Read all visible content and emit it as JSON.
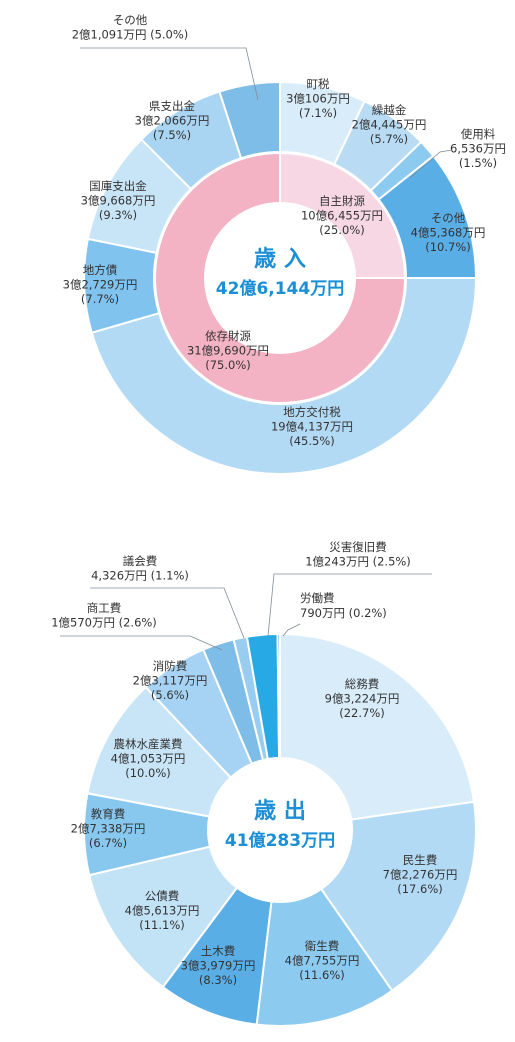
{
  "chart_data": [
    {
      "type": "pie",
      "title": "歳 入",
      "total_label": "42億6,144万円",
      "inner_ring": [
        {
          "name": "自主財源",
          "amount": "10億6,455万円",
          "pct_label": "(25.0%)",
          "pct": 25.0,
          "color": "#f7d7e4"
        },
        {
          "name": "依存財源",
          "amount": "31億9,690万円",
          "pct_label": "(75.0%)",
          "pct": 75.0,
          "color": "#f3b3c5"
        }
      ],
      "outer_ring": [
        {
          "name": "町税",
          "amount": "3億106万円",
          "pct_label": "(7.1%)",
          "pct": 7.1,
          "color": "#d9ecf9"
        },
        {
          "name": "繰越金",
          "amount": "2億4,445万円",
          "pct_label": "(5.7%)",
          "pct": 5.7,
          "color": "#b9dcf4"
        },
        {
          "name": "使用料",
          "amount": "6,536万円",
          "pct_label": "(1.5%)",
          "pct": 1.5,
          "color": "#8ccaf0"
        },
        {
          "name": "その他",
          "amount": "4億5,368万円",
          "pct_label": "(10.7%)",
          "pct": 10.7,
          "color": "#5aaee6"
        },
        {
          "name": "地方交付税",
          "amount": "19億4,137万円",
          "pct_label": "(45.5%)",
          "pct": 45.5,
          "color": "#b3daf4"
        },
        {
          "name": "地方債",
          "amount": "3億2,729万円",
          "pct_label": "(7.7%)",
          "pct": 7.7,
          "color": "#7fc3ee"
        },
        {
          "name": "国庫支出金",
          "amount": "3億9,668万円",
          "pct_label": "(9.3%)",
          "pct": 9.3,
          "color": "#c8e5f7"
        },
        {
          "name": "県支出金",
          "amount": "3億2,066万円",
          "pct_label": "(7.5%)",
          "pct": 7.5,
          "color": "#a9d5f3"
        },
        {
          "name": "その他",
          "amount": "2億1,091万円",
          "pct_label": "(5.0%)",
          "pct": 5.0,
          "color": "#7fbde9"
        }
      ]
    },
    {
      "type": "pie",
      "title": "歳 出",
      "total_label": "41億283万円",
      "slices": [
        {
          "name": "総務費",
          "amount": "9億3,224万円",
          "pct_label": "(22.7%)",
          "pct": 22.7,
          "color": "#d8ecf9"
        },
        {
          "name": "民生費",
          "amount": "7億2,276万円",
          "pct_label": "(17.6%)",
          "pct": 17.6,
          "color": "#b3daf4"
        },
        {
          "name": "衛生費",
          "amount": "4億7,755万円",
          "pct_label": "(11.6%)",
          "pct": 11.6,
          "color": "#8ccaf0"
        },
        {
          "name": "土木費",
          "amount": "3億3,979万円",
          "pct_label": "(8.3%)",
          "pct": 8.3,
          "color": "#5aaee6"
        },
        {
          "name": "公債費",
          "amount": "4億5,613万円",
          "pct_label": "(11.1%)",
          "pct": 11.1,
          "color": "#c2e2f6"
        },
        {
          "name": "教育費",
          "amount": "2億7,338万円",
          "pct_label": "(6.7%)",
          "pct": 6.7,
          "color": "#88c8ef"
        },
        {
          "name": "農林水産業費",
          "amount": "4億1,053万円",
          "pct_label": "(10.0%)",
          "pct": 10.0,
          "color": "#c8e5f7"
        },
        {
          "name": "消防費",
          "amount": "2億3,117万円",
          "pct_label": "(5.6%)",
          "pct": 5.6,
          "color": "#a6d3f3"
        },
        {
          "name": "商工費",
          "amount": "1億570万円",
          "pct_label": "(2.6%)",
          "pct": 2.6,
          "color": "#7fbde9"
        },
        {
          "name": "議会費",
          "amount": "4,326万円",
          "pct_label": "(1.1%)",
          "pct": 1.1,
          "color": "#98cdf1"
        },
        {
          "name": "災害復旧費",
          "amount": "1億243万円",
          "pct_label": "(2.5%)",
          "pct": 2.5,
          "color": "#27a9e6"
        },
        {
          "name": "労働費",
          "amount": "790万円",
          "pct_label": "(0.2%)",
          "pct": 0.2,
          "color": "#3b9ee0"
        }
      ]
    }
  ]
}
